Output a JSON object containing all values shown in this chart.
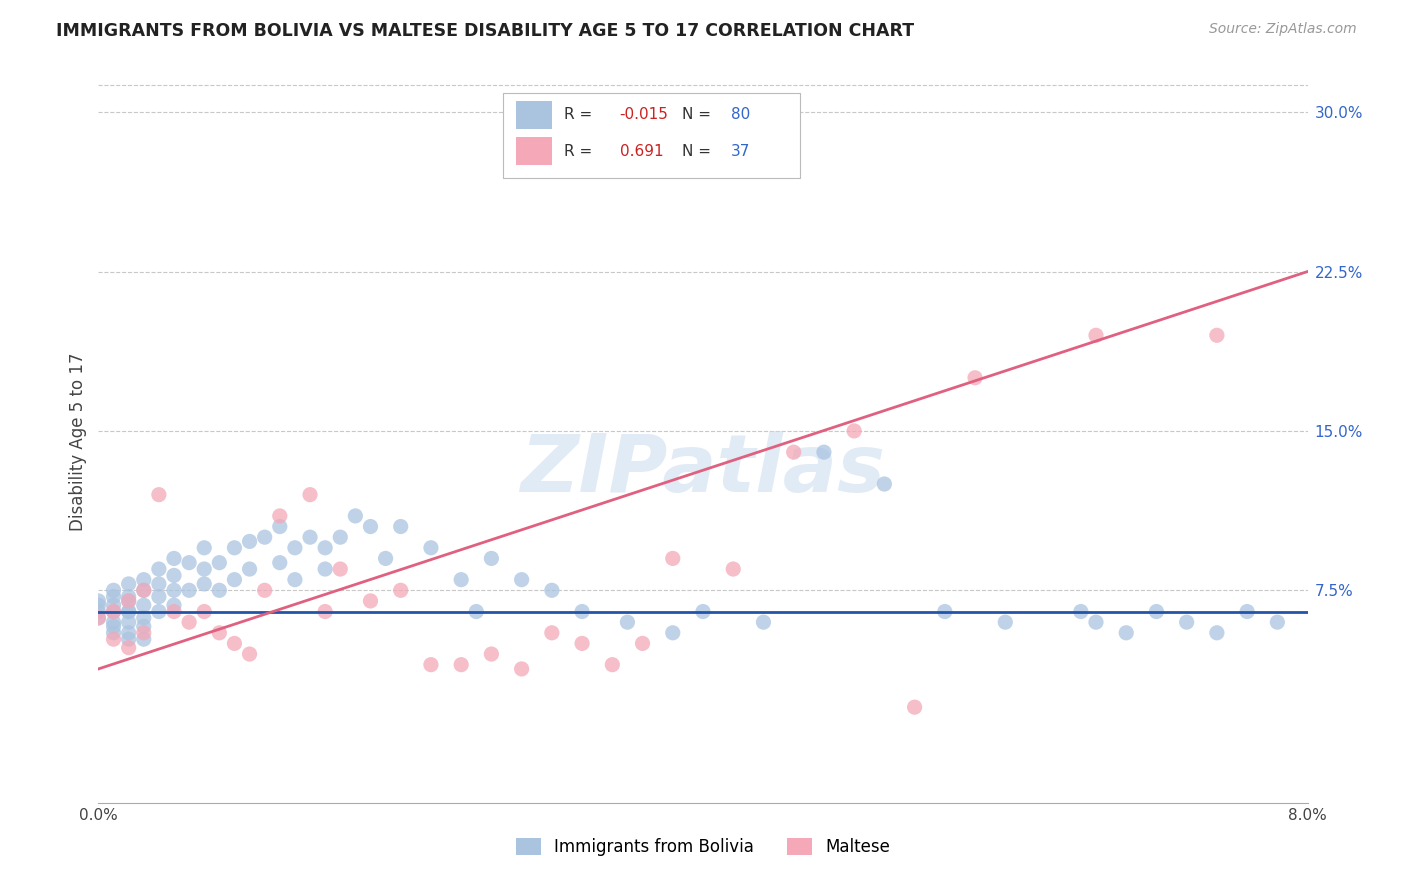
{
  "title": "IMMIGRANTS FROM BOLIVIA VS MALTESE DISABILITY AGE 5 TO 17 CORRELATION CHART",
  "source": "Source: ZipAtlas.com",
  "ylabel": "Disability Age 5 to 17",
  "bolivia_color": "#aac4e0",
  "maltese_color": "#f4a8b8",
  "bolivia_line_color": "#2255aa",
  "maltese_line_color": "#e06080",
  "grid_color": "#c8c8c8",
  "xlim": [
    0.0,
    0.08
  ],
  "ylim": [
    -0.025,
    0.315
  ],
  "ytick_vals": [
    0.075,
    0.15,
    0.225,
    0.3
  ],
  "ytick_labels": [
    "7.5%",
    "15.0%",
    "22.5%",
    "30.0%"
  ],
  "bolivia_R": -0.015,
  "bolivia_N": 80,
  "maltese_R": 0.691,
  "maltese_N": 37,
  "bolivia_line_y0": 0.065,
  "bolivia_line_y1": 0.065,
  "maltese_line_y0": 0.038,
  "maltese_line_y1": 0.225,
  "bolivia_x": [
    0.0,
    0.0,
    0.0,
    0.0,
    0.001,
    0.001,
    0.001,
    0.001,
    0.001,
    0.001,
    0.001,
    0.002,
    0.002,
    0.002,
    0.002,
    0.002,
    0.002,
    0.002,
    0.002,
    0.003,
    0.003,
    0.003,
    0.003,
    0.003,
    0.003,
    0.004,
    0.004,
    0.004,
    0.004,
    0.005,
    0.005,
    0.005,
    0.005,
    0.006,
    0.006,
    0.007,
    0.007,
    0.007,
    0.008,
    0.008,
    0.009,
    0.009,
    0.01,
    0.01,
    0.011,
    0.012,
    0.012,
    0.013,
    0.013,
    0.014,
    0.015,
    0.015,
    0.016,
    0.017,
    0.018,
    0.019,
    0.02,
    0.022,
    0.024,
    0.025,
    0.026,
    0.028,
    0.03,
    0.032,
    0.035,
    0.038,
    0.04,
    0.044,
    0.048,
    0.052,
    0.056,
    0.06,
    0.065,
    0.066,
    0.068,
    0.07,
    0.072,
    0.074,
    0.076,
    0.078
  ],
  "bolivia_y": [
    0.065,
    0.068,
    0.062,
    0.07,
    0.072,
    0.065,
    0.06,
    0.055,
    0.058,
    0.075,
    0.068,
    0.072,
    0.065,
    0.06,
    0.055,
    0.052,
    0.078,
    0.07,
    0.065,
    0.075,
    0.068,
    0.062,
    0.058,
    0.052,
    0.08,
    0.085,
    0.078,
    0.072,
    0.065,
    0.09,
    0.082,
    0.075,
    0.068,
    0.088,
    0.075,
    0.095,
    0.085,
    0.078,
    0.088,
    0.075,
    0.095,
    0.08,
    0.098,
    0.085,
    0.1,
    0.105,
    0.088,
    0.095,
    0.08,
    0.1,
    0.095,
    0.085,
    0.1,
    0.11,
    0.105,
    0.09,
    0.105,
    0.095,
    0.08,
    0.065,
    0.09,
    0.08,
    0.075,
    0.065,
    0.06,
    0.055,
    0.065,
    0.06,
    0.14,
    0.125,
    0.065,
    0.06,
    0.065,
    0.06,
    0.055,
    0.065,
    0.06,
    0.055,
    0.065,
    0.06
  ],
  "maltese_x": [
    0.0,
    0.001,
    0.001,
    0.002,
    0.002,
    0.003,
    0.003,
    0.004,
    0.005,
    0.006,
    0.007,
    0.008,
    0.009,
    0.01,
    0.011,
    0.012,
    0.014,
    0.015,
    0.016,
    0.018,
    0.02,
    0.022,
    0.024,
    0.026,
    0.028,
    0.03,
    0.032,
    0.034,
    0.036,
    0.038,
    0.042,
    0.046,
    0.05,
    0.054,
    0.058,
    0.066,
    0.074
  ],
  "maltese_y": [
    0.062,
    0.065,
    0.052,
    0.07,
    0.048,
    0.075,
    0.055,
    0.12,
    0.065,
    0.06,
    0.065,
    0.055,
    0.05,
    0.045,
    0.075,
    0.11,
    0.12,
    0.065,
    0.085,
    0.07,
    0.075,
    0.04,
    0.04,
    0.045,
    0.038,
    0.055,
    0.05,
    0.04,
    0.05,
    0.09,
    0.085,
    0.14,
    0.15,
    0.02,
    0.175,
    0.195,
    0.195
  ]
}
